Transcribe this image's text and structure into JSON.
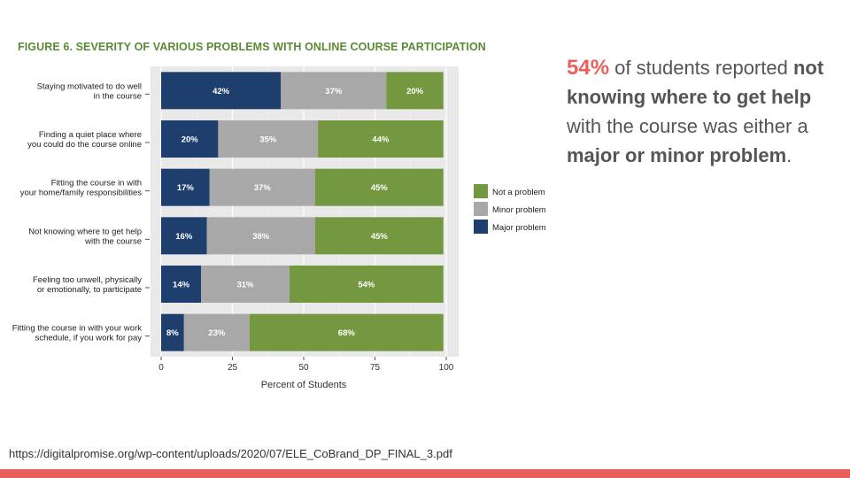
{
  "figure_title": "FIGURE 6. SEVERITY OF VARIOUS PROBLEMS WITH ONLINE COURSE PARTICIPATION",
  "callout": {
    "pct": "54%",
    "t1": " of students reported ",
    "b1": "not knowing where to get help",
    "t2": " with the course was either a ",
    "b2": "major or minor problem",
    "t3": "."
  },
  "source": "https://digitalpromise.org/wp-content/uploads/2020/07/ELE_CoBrand_DP_FINAL_3.pdf",
  "colors": {
    "major": "#1e3f6e",
    "minor": "#a8a8a8",
    "not": "#74983f",
    "panel": "#e9e9e9",
    "accent": "#e8605a",
    "title": "#5a8a35"
  },
  "chart_data": {
    "type": "bar",
    "orientation": "horizontal-stacked",
    "categories": [
      [
        "Staying motivated to do well",
        "in the course"
      ],
      [
        "Finding a quiet place where",
        "you could do the course online"
      ],
      [
        "Fitting the course in with",
        "your home/family responsibilities"
      ],
      [
        "Not knowing where to get help",
        "with the course"
      ],
      [
        "Feeling too unwell, physically",
        "or emotionally, to participate"
      ],
      [
        "Fitting the course in with your work",
        "schedule, if you work for pay"
      ]
    ],
    "series": [
      {
        "name": "Major problem",
        "color": "#1e3f6e",
        "values": [
          42,
          20,
          17,
          16,
          14,
          8
        ]
      },
      {
        "name": "Minor problem",
        "color": "#a8a8a8",
        "values": [
          37,
          35,
          37,
          38,
          31,
          23
        ]
      },
      {
        "name": "Not a problem",
        "color": "#74983f",
        "values": [
          20,
          44,
          45,
          45,
          54,
          68
        ]
      }
    ],
    "xlabel": "Percent of Students",
    "xlim": [
      0,
      100
    ],
    "xticks": [
      0,
      25,
      50,
      75,
      100
    ],
    "legend_order": [
      "Not a problem",
      "Minor problem",
      "Major problem"
    ],
    "legend_position": "right",
    "grid": true
  }
}
